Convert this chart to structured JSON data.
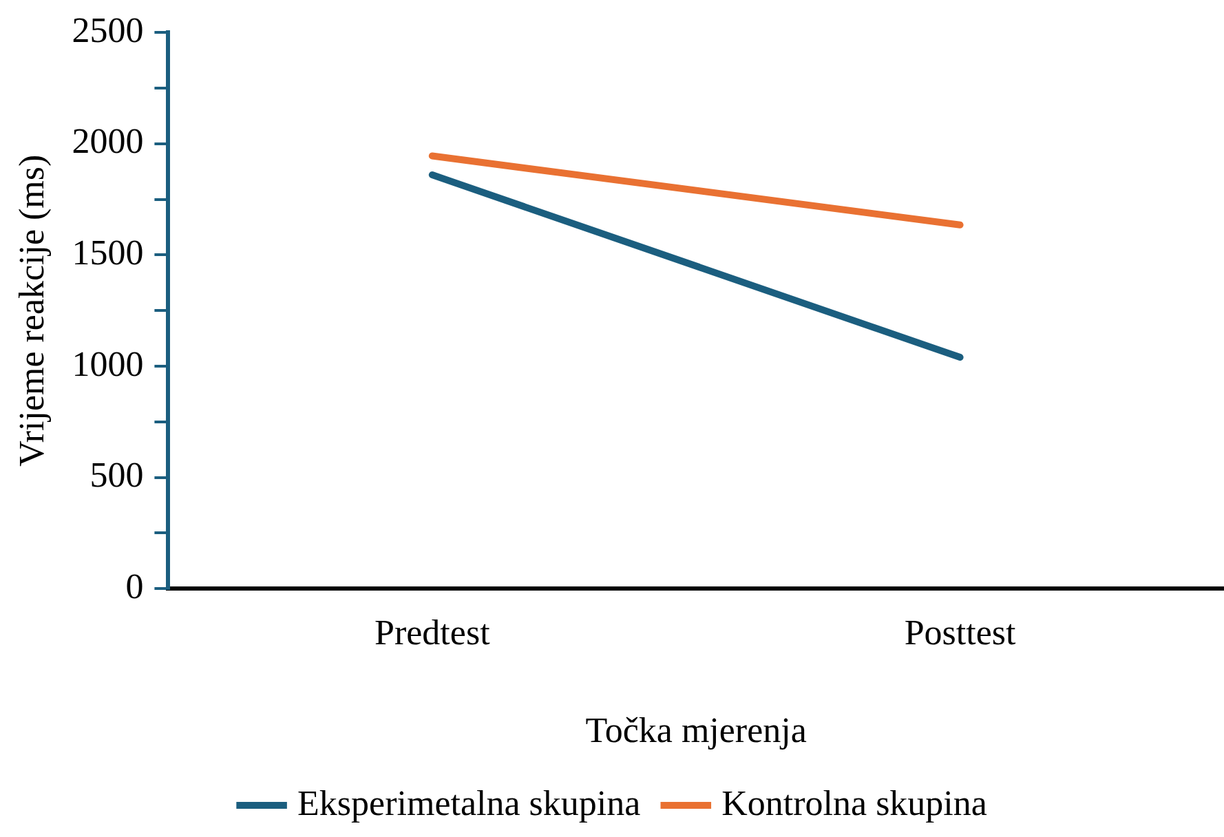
{
  "chart_data": {
    "type": "line",
    "xlabel": "Točka mjerenja",
    "ylabel": "Vrijeme reakcije (ms)",
    "categories": [
      "Predtest",
      "Posttest"
    ],
    "series": [
      {
        "name": "Eksperimetalna skupina",
        "color": "#1b5e7f",
        "values": [
          1860,
          1040
        ]
      },
      {
        "name": "Kontrolna skupina",
        "color": "#e97132",
        "values": [
          1945,
          1635
        ]
      }
    ],
    "ylim": [
      0,
      2500
    ],
    "yticks": [
      0,
      {
        "value": 250,
        "label": null
      },
      500,
      {
        "value": 750,
        "label": null
      },
      1000,
      {
        "value": 1250,
        "label": null
      },
      1500,
      {
        "value": 1750,
        "label": null
      },
      2000,
      {
        "value": 2250,
        "label": null
      },
      2500
    ],
    "grid": false,
    "legend": "bottom",
    "marker": "none",
    "line_style": "solid"
  }
}
